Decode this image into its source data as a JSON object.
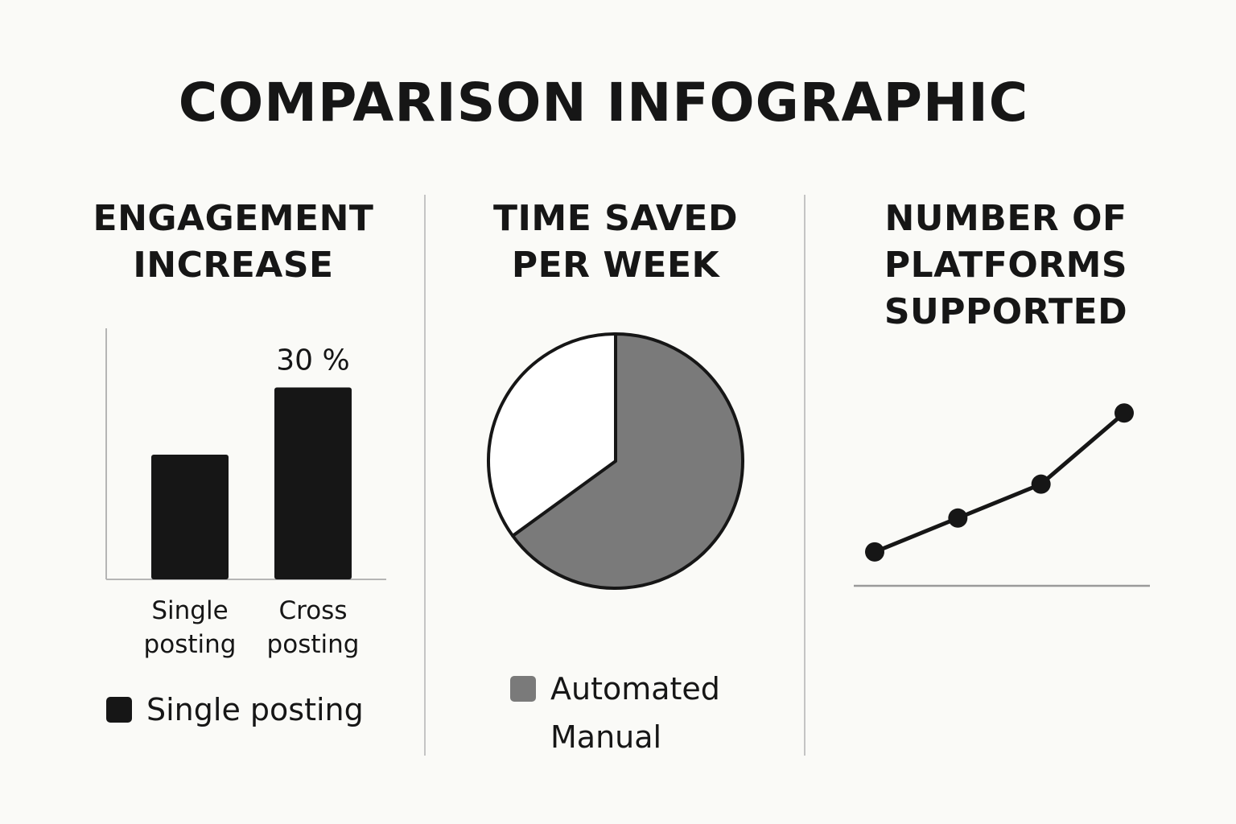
{
  "title": "COMPARISON INFOGRAPHIC",
  "chart_data": [
    {
      "type": "bar",
      "title_lines": [
        "ENGAGEMENT",
        "INCREASE"
      ],
      "categories": [
        [
          "Single",
          "posting"
        ],
        [
          "Cross",
          "posting"
        ]
      ],
      "values": [
        65,
        100
      ],
      "value_labels": [
        "",
        "30 %"
      ],
      "ylim": [
        0,
        130
      ],
      "colors": [
        "#161616",
        "#161616"
      ],
      "legend": [
        {
          "label": "Single posting",
          "color": "#161616"
        }
      ]
    },
    {
      "type": "pie",
      "title_lines": [
        "TIME SAVED",
        "PER WEEK"
      ],
      "slices": [
        {
          "label": "Automated",
          "value": 65,
          "color": "#7a7a7a"
        },
        {
          "label": "Manual",
          "value": 35,
          "color": "#ffffff"
        }
      ],
      "legend": [
        {
          "label": "Automated",
          "color": "#7a7a7a"
        },
        {
          "label": "Manual",
          "color": null
        }
      ]
    },
    {
      "type": "line",
      "title_lines": [
        "NUMBER OF",
        "PLATFORMS",
        "SUPPORTED"
      ],
      "x": [
        1,
        2,
        3,
        4
      ],
      "values": [
        1,
        2,
        3,
        5.1
      ],
      "ylim": [
        0,
        5.7
      ],
      "colors": {
        "line": "#161616",
        "marker": "#161616"
      }
    }
  ]
}
